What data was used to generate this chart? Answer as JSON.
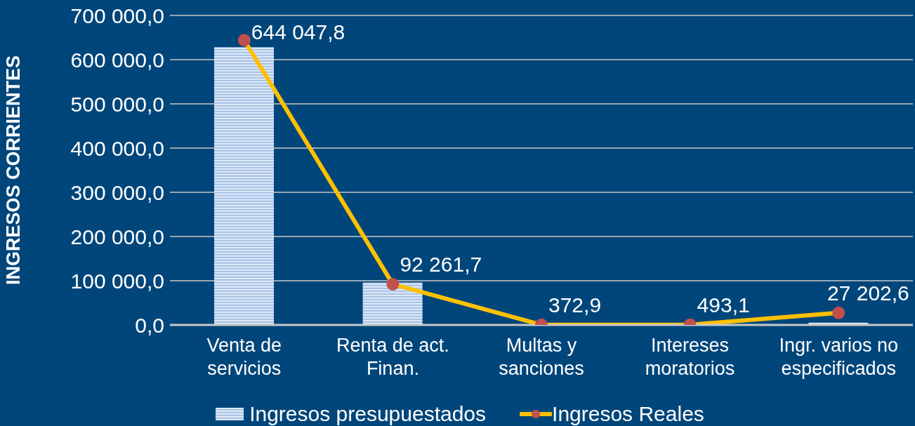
{
  "chart_data": {
    "type": "bar",
    "ylabel": "INGRESOS  CORRIENTES",
    "categories": [
      "Venta de servicios",
      "Renta de act. Finan.",
      "Multas y sanciones",
      "Intereses moratorios",
      "Ingr. varios no especificados"
    ],
    "series": [
      {
        "name": "Ingresos presupuestados",
        "color": "#a9c4e8",
        "values": [
          628000,
          96000,
          0,
          0,
          5000
        ]
      },
      {
        "name": "Ingresos Reales",
        "type": "line",
        "color": "#ffc000",
        "marker": "circle",
        "values": [
          644047.8,
          92261.7,
          372.9,
          493.1,
          27202.6
        ],
        "value_labels": [
          "644 047,8",
          "92 261,7",
          "372,9",
          "493,1",
          "27 202,6"
        ]
      }
    ],
    "ylim": [
      0,
      700000
    ],
    "yticks": [
      {
        "value": 0,
        "label": "0,0"
      },
      {
        "value": 100000,
        "label": "100 000,0"
      },
      {
        "value": 200000,
        "label": "200 000,0"
      },
      {
        "value": 300000,
        "label": "300 000,0"
      },
      {
        "value": 400000,
        "label": "400 000,0"
      },
      {
        "value": 500000,
        "label": "500 000,0"
      },
      {
        "value": 600000,
        "label": "600 000,0"
      },
      {
        "value": 700000,
        "label": "700 000,0"
      }
    ],
    "grid": "y",
    "legend": "bottom"
  }
}
